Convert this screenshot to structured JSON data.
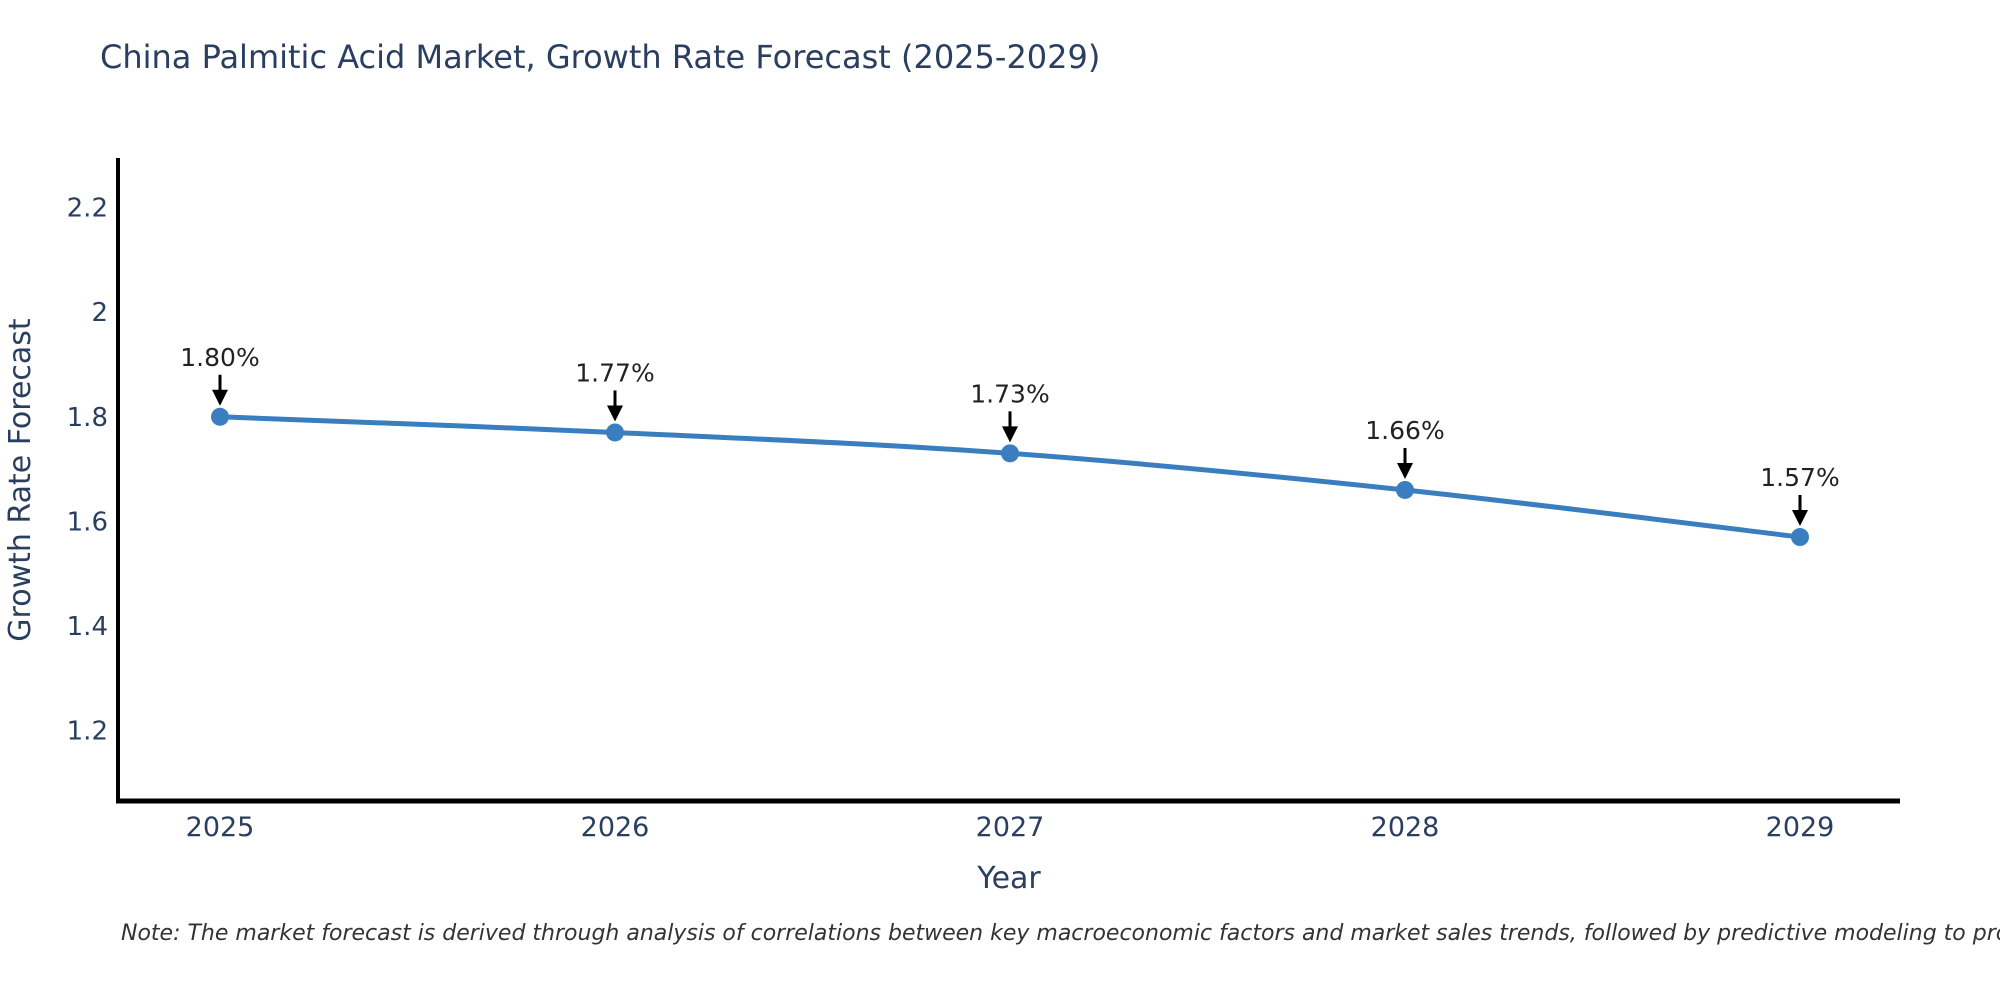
{
  "chart_data": {
    "type": "line",
    "title": "China Palmitic Acid Market, Growth Rate Forecast (2025-2029)",
    "xlabel": "Year",
    "ylabel": "Growth Rate Forecast",
    "x": [
      "2025",
      "2026",
      "2027",
      "2028",
      "2029"
    ],
    "series": [
      {
        "name": "Growth Rate Forecast",
        "values": [
          1.8,
          1.77,
          1.73,
          1.66,
          1.57
        ]
      }
    ],
    "point_labels": [
      "1.80%",
      "1.77%",
      "1.73%",
      "1.66%",
      "1.57%"
    ],
    "yticks": [
      1.2,
      1.4,
      1.6,
      1.8,
      2,
      2.2
    ],
    "ytick_labels": [
      "1.2",
      "1.4",
      "1.6",
      "1.8",
      "2",
      "2.2"
    ],
    "ylim": [
      1.065,
      2.295
    ],
    "grid": false,
    "legend": "none",
    "colors": {
      "line": "#3a7ebf",
      "marker": "#3a7ebf",
      "axis": "#000000",
      "tick_text": "#2a3f5f",
      "axis_title_text": "#2a3f5f",
      "annotation_text": "#222222",
      "arrow": "#000000",
      "background": "#ffffff"
    }
  },
  "footer": {
    "note": "Note: The market forecast is derived through analysis of correlations between key macroeconomic factors and market sales trends, followed by predictive modeling to project future sales"
  }
}
